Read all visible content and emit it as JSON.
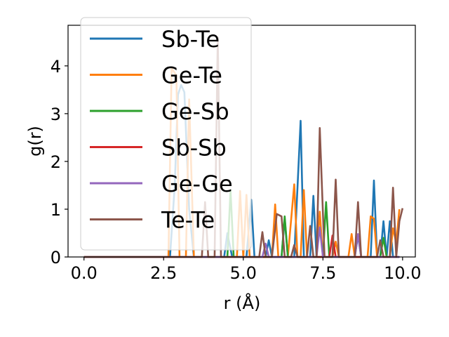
{
  "chart_data": {
    "type": "line",
    "title": "",
    "xlabel": "r (Å)",
    "ylabel": "g(r)",
    "xlim": [
      -0.5,
      10.4
    ],
    "ylim": [
      0,
      4.85
    ],
    "xticks": [
      0.0,
      2.5,
      5.0,
      7.5,
      10.0
    ],
    "xtick_labels": [
      "0.0",
      "2.5",
      "5.0",
      "7.5",
      "10.0"
    ],
    "yticks": [
      0,
      1,
      2,
      3,
      4
    ],
    "ytick_labels": [
      "0",
      "1",
      "2",
      "3",
      "4"
    ],
    "legend_position": "upper-left",
    "grid": false,
    "series": [
      {
        "name": "Sb-Te",
        "color": "#1f77b4",
        "points": [
          [
            0,
            0
          ],
          [
            2.7,
            0
          ],
          [
            2.85,
            1.5
          ],
          [
            2.95,
            3.4
          ],
          [
            3.05,
            3.6
          ],
          [
            3.15,
            3.45
          ],
          [
            3.3,
            1.0
          ],
          [
            3.45,
            0
          ],
          [
            4.4,
            0
          ],
          [
            4.5,
            0.5
          ],
          [
            4.65,
            0
          ],
          [
            5.1,
            0
          ],
          [
            5.25,
            1.2
          ],
          [
            5.35,
            0
          ],
          [
            5.7,
            0
          ],
          [
            5.8,
            0.35
          ],
          [
            5.9,
            0
          ],
          [
            6.2,
            0
          ],
          [
            6.3,
            0.8
          ],
          [
            6.4,
            0
          ],
          [
            6.6,
            0
          ],
          [
            6.8,
            2.85
          ],
          [
            6.9,
            0
          ],
          [
            7.1,
            0
          ],
          [
            7.2,
            1.28
          ],
          [
            7.3,
            0
          ],
          [
            8.5,
            0
          ],
          [
            8.6,
            0.45
          ],
          [
            8.7,
            0
          ],
          [
            9.0,
            0
          ],
          [
            9.1,
            1.6
          ],
          [
            9.2,
            0
          ],
          [
            9.3,
            0
          ],
          [
            9.4,
            0.75
          ],
          [
            9.5,
            0
          ],
          [
            9.6,
            0.75
          ],
          [
            9.7,
            0
          ],
          [
            9.9,
            0
          ]
        ]
      },
      {
        "name": "Ge-Te",
        "color": "#ff7f0e",
        "points": [
          [
            0,
            0
          ],
          [
            2.65,
            0
          ],
          [
            2.75,
            3.95
          ],
          [
            2.9,
            3.8
          ],
          [
            3.0,
            0
          ],
          [
            3.2,
            0
          ],
          [
            3.3,
            3.3
          ],
          [
            3.45,
            0
          ],
          [
            4.8,
            0
          ],
          [
            4.9,
            1.38
          ],
          [
            5.0,
            0
          ],
          [
            5.1,
            1.3
          ],
          [
            5.2,
            0
          ],
          [
            5.9,
            0
          ],
          [
            6.0,
            1.1
          ],
          [
            6.1,
            0
          ],
          [
            6.4,
            0
          ],
          [
            6.6,
            1.52
          ],
          [
            6.7,
            0
          ],
          [
            6.8,
            0
          ],
          [
            6.9,
            1.4
          ],
          [
            7.0,
            0
          ],
          [
            7.3,
            0
          ],
          [
            7.4,
            0.95
          ],
          [
            7.5,
            0
          ],
          [
            7.8,
            0
          ],
          [
            7.9,
            0.32
          ],
          [
            8.0,
            0
          ],
          [
            8.3,
            0
          ],
          [
            8.4,
            0.48
          ],
          [
            8.5,
            0
          ],
          [
            8.9,
            0
          ],
          [
            9.0,
            0.85
          ],
          [
            9.1,
            0.8
          ],
          [
            9.2,
            0
          ],
          [
            9.6,
            0
          ],
          [
            9.7,
            0.6
          ],
          [
            9.8,
            0.3
          ],
          [
            9.9,
            1.0
          ]
        ]
      },
      {
        "name": "Ge-Sb",
        "color": "#2ca02c",
        "points": [
          [
            0,
            0
          ],
          [
            4.5,
            0
          ],
          [
            4.6,
            1.4
          ],
          [
            4.7,
            0
          ],
          [
            6.2,
            0
          ],
          [
            6.3,
            0.85
          ],
          [
            6.4,
            0
          ],
          [
            7.5,
            0
          ],
          [
            7.6,
            1.15
          ],
          [
            7.7,
            0
          ],
          [
            9.3,
            0
          ],
          [
            9.4,
            0.4
          ],
          [
            9.5,
            0
          ],
          [
            9.9,
            0
          ]
        ]
      },
      {
        "name": "Sb-Sb",
        "color": "#d62728",
        "points": [
          [
            0,
            0
          ],
          [
            7.7,
            0
          ],
          [
            7.8,
            0.45
          ],
          [
            7.9,
            0
          ],
          [
            9.9,
            0
          ]
        ]
      },
      {
        "name": "Ge-Ge",
        "color": "#9467bd",
        "points": [
          [
            0,
            0
          ],
          [
            5.6,
            0
          ],
          [
            5.7,
            0.28
          ],
          [
            5.8,
            0
          ],
          [
            7.3,
            0
          ],
          [
            7.4,
            0.62
          ],
          [
            7.5,
            0
          ],
          [
            8.5,
            0
          ],
          [
            8.6,
            0.48
          ],
          [
            8.7,
            0
          ],
          [
            9.9,
            0
          ]
        ]
      },
      {
        "name": "Te-Te",
        "color": "#8c564b",
        "points": [
          [
            0,
            0
          ],
          [
            3.7,
            0
          ],
          [
            3.8,
            1.15
          ],
          [
            3.9,
            0
          ],
          [
            4.1,
            0
          ],
          [
            4.2,
            4.6
          ],
          [
            4.3,
            0
          ],
          [
            5.5,
            0
          ],
          [
            5.6,
            0.52
          ],
          [
            5.7,
            0
          ],
          [
            5.9,
            0
          ],
          [
            6.05,
            0.9
          ],
          [
            6.2,
            0.85
          ],
          [
            6.3,
            0
          ],
          [
            6.5,
            0
          ],
          [
            6.6,
            0.25
          ],
          [
            6.7,
            0
          ],
          [
            7.0,
            0
          ],
          [
            7.1,
            0.65
          ],
          [
            7.2,
            0
          ],
          [
            7.3,
            0
          ],
          [
            7.4,
            2.7
          ],
          [
            7.55,
            0
          ],
          [
            7.8,
            0
          ],
          [
            7.9,
            1.62
          ],
          [
            8.0,
            0
          ],
          [
            8.5,
            0
          ],
          [
            8.6,
            1.15
          ],
          [
            8.7,
            0
          ],
          [
            9.2,
            0
          ],
          [
            9.3,
            0.35
          ],
          [
            9.4,
            0
          ],
          [
            9.6,
            0
          ],
          [
            9.7,
            1.45
          ],
          [
            9.8,
            0
          ],
          [
            9.9,
            0.75
          ],
          [
            10.0,
            1.02
          ]
        ]
      }
    ]
  }
}
